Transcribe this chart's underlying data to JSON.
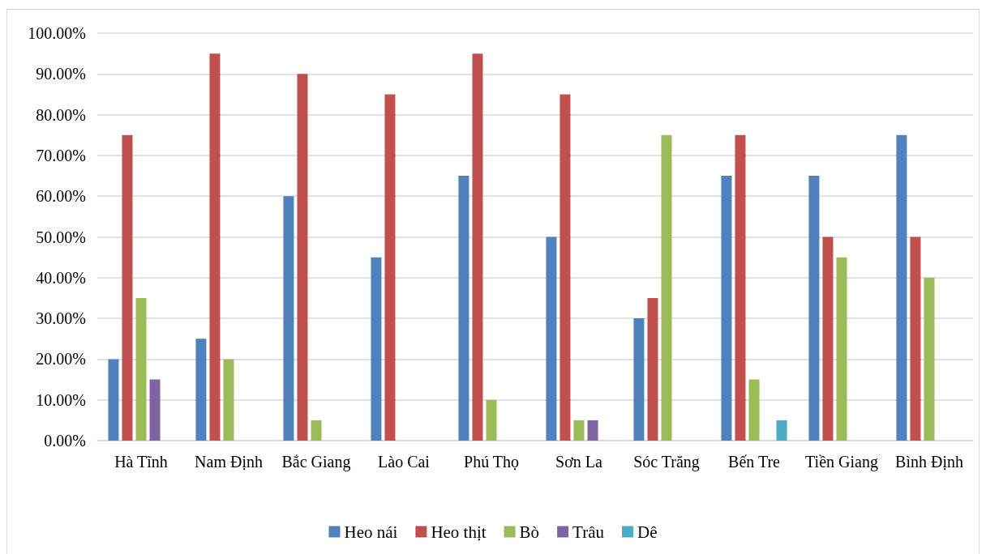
{
  "chart_data": {
    "type": "bar",
    "categories": [
      "Hà Tĩnh",
      "Nam Định",
      "Bắc Giang",
      "Lào Cai",
      "Phú Thọ",
      "Sơn La",
      "Sóc Trăng",
      "Bến Tre",
      "Tiền Giang",
      "Bình Định"
    ],
    "series": [
      {
        "name": "Heo nái",
        "color": "#4f81bd",
        "values": [
          20,
          25,
          60,
          45,
          65,
          50,
          30,
          65,
          65,
          75
        ]
      },
      {
        "name": "Heo thịt",
        "color": "#c0504d",
        "values": [
          75,
          95,
          90,
          85,
          95,
          85,
          35,
          75,
          50,
          50
        ]
      },
      {
        "name": "Bò",
        "color": "#9bbb59",
        "values": [
          35,
          20,
          5,
          null,
          10,
          5,
          75,
          15,
          45,
          40
        ]
      },
      {
        "name": "Trâu",
        "color": "#8064a2",
        "values": [
          15,
          null,
          null,
          null,
          null,
          5,
          null,
          null,
          null,
          null
        ]
      },
      {
        "name": "Dê",
        "color": "#4bacc6",
        "values": [
          null,
          null,
          null,
          null,
          null,
          null,
          null,
          5,
          null,
          null
        ]
      }
    ],
    "ylim": [
      0,
      100
    ],
    "yticks": [
      {
        "value": 0,
        "label": "0.00%"
      },
      {
        "value": 10,
        "label": "10.00%"
      },
      {
        "value": 20,
        "label": "20.00%"
      },
      {
        "value": 30,
        "label": "30.00%"
      },
      {
        "value": 40,
        "label": "40.00%"
      },
      {
        "value": 50,
        "label": "50.00%"
      },
      {
        "value": 60,
        "label": "60.00%"
      },
      {
        "value": 70,
        "label": "70.00%"
      },
      {
        "value": 80,
        "label": "80.00%"
      },
      {
        "value": 90,
        "label": "90.00%"
      },
      {
        "value": 100,
        "label": "100.00%"
      }
    ],
    "grid": "y",
    "legend": "bottom"
  }
}
